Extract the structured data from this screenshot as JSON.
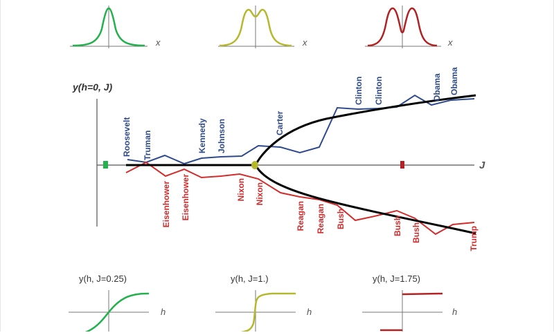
{
  "colors": {
    "democrat": "#2e4a8f",
    "republican": "#d42b2b",
    "bifurcation": "#000000",
    "axis": "#555555",
    "green": "#22b14c",
    "olive": "#b5b82a",
    "darkred": "#b22222"
  },
  "top_panels": [
    {
      "x_label": "x",
      "color": "green"
    },
    {
      "x_label": "x",
      "color": "olive"
    },
    {
      "x_label": "x",
      "color": "darkred"
    }
  ],
  "main": {
    "y_label": "y(h=0, J)",
    "x_label": "J"
  },
  "democrats": [
    "Roosevelt",
    "Truman",
    "Kennedy",
    "Johnson",
    "Carter",
    "Clinton",
    "Clinton",
    "Obama",
    "Obama"
  ],
  "republicans": [
    "Eisenhower",
    "Eisenhower",
    "Nixon",
    "Nixon",
    "Reagan",
    "Reagan",
    "Bush",
    "Bush",
    "Bush",
    "Trump"
  ],
  "bottom_panels": [
    {
      "title": "y(h, J=0.25)",
      "h_label": "h",
      "color": "green"
    },
    {
      "title": "y(h, J=1.)",
      "h_label": "h",
      "color": "olive"
    },
    {
      "title": "y(h, J=1.75)",
      "h_label": "h",
      "color": "darkred"
    }
  ]
}
